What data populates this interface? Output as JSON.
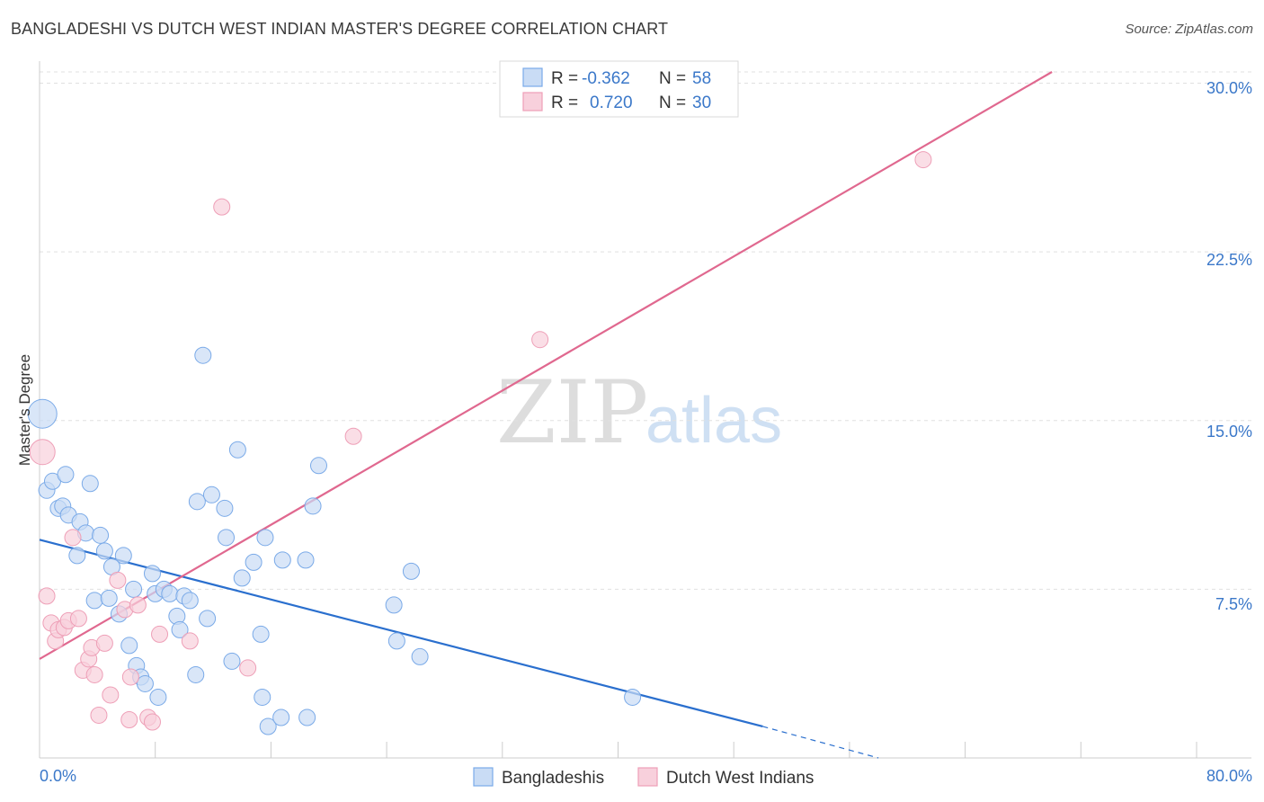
{
  "header": {
    "title": "BANGLADESHI VS DUTCH WEST INDIAN MASTER'S DEGREE CORRELATION CHART",
    "source": "Source: ZipAtlas.com"
  },
  "watermark": {
    "zip": "ZIP",
    "atlas": "atlas"
  },
  "chart_data": {
    "type": "scatter",
    "title": "BANGLADESHI VS DUTCH WEST INDIAN MASTER'S DEGREE CORRELATION CHART",
    "xlabel": "",
    "ylabel": "Master's Degree",
    "xlim": [
      0,
      80
    ],
    "ylim": [
      0,
      30.5
    ],
    "x_tick_labels": [
      "0.0%",
      "80.0%"
    ],
    "y_ticks": [
      7.5,
      15.0,
      22.5,
      30.0
    ],
    "y_tick_labels": [
      "7.5%",
      "15.0%",
      "22.5%",
      "30.0%"
    ],
    "grid": true,
    "legend": {
      "placement": "top-center",
      "entries": [
        {
          "r_label": "R =",
          "r_value": "-0.362",
          "n_label": "N =",
          "n_value": "58"
        },
        {
          "r_label": "R =",
          "r_value": "0.720",
          "n_label": "N =",
          "n_value": "30"
        }
      ]
    },
    "bottom_legend": [
      "Bangladeshis",
      "Dutch West Indians"
    ],
    "series": [
      {
        "name": "Bangladeshis",
        "color": "#7aaae8",
        "fill": "#c9dcf5",
        "line_color": "#2a6fce",
        "trend": {
          "x0": 0,
          "y0": 9.7,
          "x1": 50,
          "y1": 1.4,
          "dash_to_x": 58,
          "dash_to_y": 0.0
        },
        "points": [
          [
            0.2,
            15.3,
            16
          ],
          [
            0.5,
            11.9,
            9
          ],
          [
            0.9,
            12.3,
            9
          ],
          [
            1.3,
            11.1,
            9
          ],
          [
            1.6,
            11.2,
            9
          ],
          [
            1.8,
            12.6,
            9
          ],
          [
            2.0,
            10.8,
            9
          ],
          [
            2.6,
            9.0,
            9
          ],
          [
            2.8,
            10.5,
            9
          ],
          [
            3.2,
            10.0,
            9
          ],
          [
            3.5,
            12.2,
            9
          ],
          [
            3.8,
            7.0,
            9
          ],
          [
            4.2,
            9.9,
            9
          ],
          [
            4.5,
            9.2,
            9
          ],
          [
            4.8,
            7.1,
            9
          ],
          [
            5.0,
            8.5,
            9
          ],
          [
            5.5,
            6.4,
            9
          ],
          [
            5.8,
            9.0,
            9
          ],
          [
            6.2,
            5.0,
            9
          ],
          [
            6.5,
            7.5,
            9
          ],
          [
            6.7,
            4.1,
            9
          ],
          [
            7.0,
            3.6,
            9
          ],
          [
            7.3,
            3.3,
            9
          ],
          [
            7.8,
            8.2,
            9
          ],
          [
            8.0,
            7.3,
            9
          ],
          [
            8.2,
            2.7,
            9
          ],
          [
            8.6,
            7.5,
            9
          ],
          [
            9.0,
            7.3,
            9
          ],
          [
            9.5,
            6.3,
            9
          ],
          [
            9.7,
            5.7,
            9
          ],
          [
            10.0,
            7.2,
            9
          ],
          [
            10.4,
            7.0,
            9
          ],
          [
            10.8,
            3.7,
            9
          ],
          [
            10.9,
            11.4,
            9
          ],
          [
            11.3,
            17.9,
            9
          ],
          [
            11.6,
            6.2,
            9
          ],
          [
            11.9,
            11.7,
            9
          ],
          [
            12.8,
            11.1,
            9
          ],
          [
            12.9,
            9.8,
            9
          ],
          [
            13.3,
            4.3,
            9
          ],
          [
            13.7,
            13.7,
            9
          ],
          [
            14.0,
            8.0,
            9
          ],
          [
            14.8,
            8.7,
            9
          ],
          [
            15.3,
            5.5,
            9
          ],
          [
            15.4,
            2.7,
            9
          ],
          [
            15.6,
            9.8,
            9
          ],
          [
            15.8,
            1.4,
            9
          ],
          [
            16.7,
            1.8,
            9
          ],
          [
            16.8,
            8.8,
            9
          ],
          [
            18.4,
            8.8,
            9
          ],
          [
            18.5,
            1.8,
            9
          ],
          [
            18.9,
            11.2,
            9
          ],
          [
            19.3,
            13.0,
            9
          ],
          [
            24.5,
            6.8,
            9
          ],
          [
            24.7,
            5.2,
            9
          ],
          [
            25.7,
            8.3,
            9
          ],
          [
            26.3,
            4.5,
            9
          ],
          [
            41.0,
            2.7,
            9
          ]
        ]
      },
      {
        "name": "Dutch West Indians",
        "color": "#ee9fb7",
        "fill": "#f8d0dc",
        "line_color": "#e0688f",
        "trend": {
          "x0": 0,
          "y0": 4.4,
          "x1": 70,
          "y1": 30.5
        },
        "points": [
          [
            0.2,
            13.6,
            14
          ],
          [
            0.5,
            7.2,
            9
          ],
          [
            0.8,
            6.0,
            9
          ],
          [
            1.1,
            5.2,
            9
          ],
          [
            1.3,
            5.7,
            9
          ],
          [
            1.7,
            5.8,
            9
          ],
          [
            2.0,
            6.1,
            9
          ],
          [
            2.3,
            9.8,
            9
          ],
          [
            2.7,
            6.2,
            9
          ],
          [
            3.0,
            3.9,
            9
          ],
          [
            3.4,
            4.4,
            9
          ],
          [
            3.6,
            4.9,
            9
          ],
          [
            3.8,
            3.7,
            9
          ],
          [
            4.1,
            1.9,
            9
          ],
          [
            4.5,
            5.1,
            9
          ],
          [
            4.9,
            2.8,
            9
          ],
          [
            5.4,
            7.9,
            9
          ],
          [
            5.9,
            6.6,
            9
          ],
          [
            6.2,
            1.7,
            9
          ],
          [
            6.3,
            3.6,
            9
          ],
          [
            6.8,
            6.8,
            9
          ],
          [
            7.5,
            1.8,
            9
          ],
          [
            7.8,
            1.6,
            9
          ],
          [
            8.3,
            5.5,
            9
          ],
          [
            10.4,
            5.2,
            9
          ],
          [
            12.6,
            24.5,
            9
          ],
          [
            14.4,
            4.0,
            9
          ],
          [
            21.7,
            14.3,
            9
          ],
          [
            34.6,
            18.6,
            9
          ],
          [
            61.1,
            26.6,
            9
          ]
        ]
      }
    ]
  }
}
